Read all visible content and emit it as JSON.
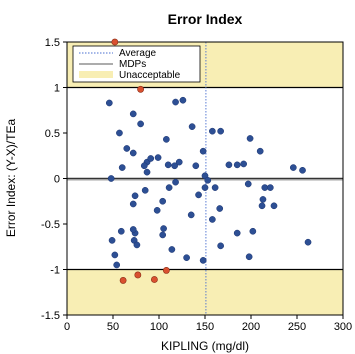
{
  "chart_data": {
    "type": "scatter",
    "title": "Error Index",
    "xlabel": "KIPLING (mg/dl)",
    "ylabel": "Error Index: (Y-X)/TEa",
    "xlim": [
      0,
      300
    ],
    "ylim": [
      -1.5,
      1.5
    ],
    "x_ticks": [
      0,
      50,
      100,
      150,
      200,
      250,
      300
    ],
    "y_ticks": [
      -1.5,
      -1,
      -0.5,
      0,
      0.5,
      1,
      1.5
    ],
    "x_tick_labels": [
      "0",
      "50",
      "100",
      "150",
      "200",
      "250",
      "300"
    ],
    "y_tick_labels": [
      "-1.5",
      "-1",
      "-0.5",
      "0",
      "0.5",
      "1",
      "1.5"
    ],
    "average_x": 151,
    "unacceptable_limits": [
      -1,
      1
    ],
    "legend": {
      "placement": "top-left",
      "entries": [
        "Average",
        "MDPs",
        "Unacceptable"
      ]
    },
    "colors": {
      "unacceptable_fill": "#f8eeb4",
      "point_fill": "#2d4f94",
      "outlier_fill": "#d9502f",
      "average_line": "#4a6fd0",
      "mdp_line": "#5a5a5a"
    },
    "series": [
      {
        "values": [
          [
            46,
            0.83
          ],
          [
            57,
            0.5
          ],
          [
            72,
            0.71
          ],
          [
            80,
            0.6
          ],
          [
            65,
            0.33
          ],
          [
            72,
            0.28
          ],
          [
            87,
            0.18
          ],
          [
            91,
            0.22
          ],
          [
            118,
            0.84
          ],
          [
            126,
            0.86
          ],
          [
            136,
            0.57
          ],
          [
            108,
            0.43
          ],
          [
            99,
            0.23
          ],
          [
            110,
            0.15
          ],
          [
            117,
            0.14
          ],
          [
            122,
            0.18
          ],
          [
            140,
            0.14
          ],
          [
            148,
            0.3
          ],
          [
            158,
            0.52
          ],
          [
            167,
            0.52
          ],
          [
            176,
            0.15
          ],
          [
            185,
            0.15
          ],
          [
            192,
            0.16
          ],
          [
            199,
            0.44
          ],
          [
            210,
            0.3
          ],
          [
            246,
            0.12
          ],
          [
            256,
            0.09
          ],
          [
            48,
            0.0
          ],
          [
            84,
            0.14
          ],
          [
            60,
            0.12
          ],
          [
            87,
            0.07
          ],
          [
            150,
            0.03
          ],
          [
            153,
            -0.02
          ],
          [
            118,
            -0.04
          ],
          [
            111,
            -0.1
          ],
          [
            85,
            -0.13
          ],
          [
            74,
            -0.19
          ],
          [
            72,
            -0.28
          ],
          [
            104,
            -0.25
          ],
          [
            143,
            -0.18
          ],
          [
            150,
            -0.1
          ],
          [
            161,
            -0.1
          ],
          [
            197,
            -0.06
          ],
          [
            215,
            -0.1
          ],
          [
            221,
            -0.1
          ],
          [
            213,
            -0.23
          ],
          [
            212,
            -0.3
          ],
          [
            225,
            -0.3
          ],
          [
            49,
            -0.68
          ],
          [
            59,
            -0.58
          ],
          [
            74,
            -0.6
          ],
          [
            72,
            -0.56
          ],
          [
            73,
            -0.68
          ],
          [
            76,
            -0.73
          ],
          [
            52,
            -0.84
          ],
          [
            54,
            -0.95
          ],
          [
            98,
            -0.35
          ],
          [
            105,
            -0.55
          ],
          [
            104,
            -0.62
          ],
          [
            114,
            -0.78
          ],
          [
            130,
            -0.87
          ],
          [
            148,
            -0.9
          ],
          [
            166,
            -0.33
          ],
          [
            158,
            -0.45
          ],
          [
            167,
            -0.74
          ],
          [
            185,
            -0.6
          ],
          [
            202,
            -0.58
          ],
          [
            198,
            -0.86
          ],
          [
            262,
            -0.7
          ],
          [
            135,
            -0.4
          ]
        ]
      },
      {
        "values": [
          [
            52,
            1.5
          ],
          [
            80,
            0.98
          ],
          [
            61,
            -1.12
          ],
          [
            77,
            -1.06
          ],
          [
            95,
            -1.11
          ],
          [
            108,
            -1.01
          ]
        ]
      }
    ]
  }
}
